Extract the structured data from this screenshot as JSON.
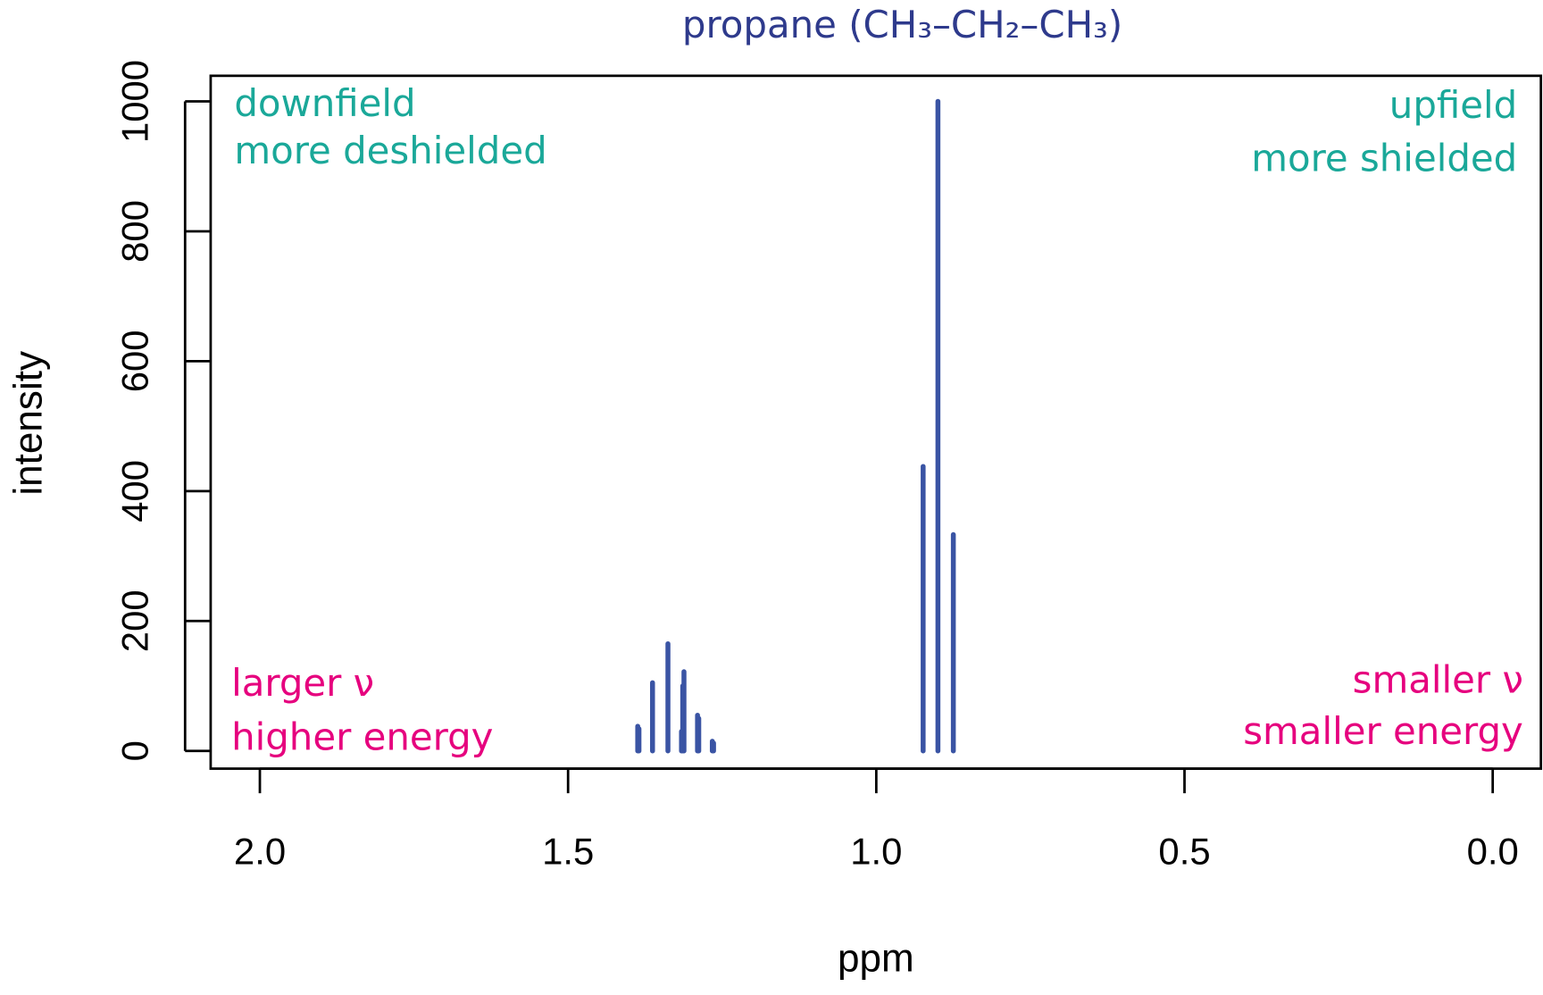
{
  "chart_data": {
    "type": "bar",
    "title": "propane (CH₃–CH₂–CH₃)",
    "xlabel": "ppm",
    "ylabel": "intensity",
    "xlim": [
      2.08,
      -0.08
    ],
    "ylim": [
      -28,
      1040
    ],
    "x_reversed": true,
    "grid": false,
    "xticks": [
      2.0,
      1.5,
      1.0,
      0.5,
      0.0
    ],
    "xtick_labels": [
      "2.0",
      "1.5",
      "1.0",
      "0.5",
      "0.0"
    ],
    "yticks": [
      0,
      200,
      400,
      600,
      800,
      1000
    ],
    "ytick_labels": [
      "0",
      "200",
      "400",
      "600",
      "800",
      "1000"
    ],
    "peaks": [
      {
        "ppm": 1.387,
        "intensity": 38
      },
      {
        "ppm": 1.385,
        "intensity": 34
      },
      {
        "ppm": 1.363,
        "intensity": 105
      },
      {
        "ppm": 1.338,
        "intensity": 165
      },
      {
        "ppm": 1.316,
        "intensity": 30
      },
      {
        "ppm": 1.314,
        "intensity": 100
      },
      {
        "ppm": 1.312,
        "intensity": 122
      },
      {
        "ppm": 1.29,
        "intensity": 55
      },
      {
        "ppm": 1.288,
        "intensity": 50
      },
      {
        "ppm": 1.266,
        "intensity": 15
      },
      {
        "ppm": 1.264,
        "intensity": 12
      },
      {
        "ppm": 0.924,
        "intensity": 438
      },
      {
        "ppm": 0.9,
        "intensity": 1000
      },
      {
        "ppm": 0.875,
        "intensity": 333
      }
    ],
    "annotations": {
      "top_left": [
        "downfield",
        "more deshielded"
      ],
      "top_right": [
        "upfield",
        "more shielded"
      ],
      "bottom_left": [
        "larger ν",
        "higher energy"
      ],
      "bottom_right": [
        "smaller ν",
        "smaller energy"
      ]
    },
    "colors": {
      "peaks": "#3a54a4",
      "title": "#2e3a8c",
      "annotation_top": "#1aa899",
      "annotation_bottom": "#e6007e"
    }
  }
}
